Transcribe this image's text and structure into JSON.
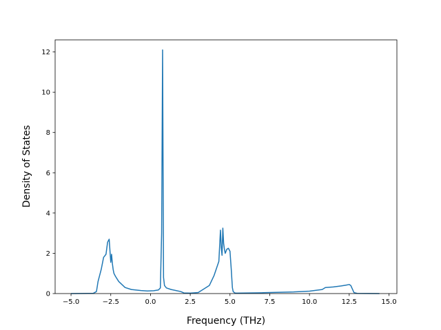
{
  "chart_data": {
    "type": "line",
    "xlabel": "Frequency (THz)",
    "ylabel": "Density of States",
    "xlim": [
      -6.0,
      15.5
    ],
    "ylim": [
      0,
      12.6
    ],
    "x_ticks": [
      -5.0,
      -2.5,
      0.0,
      2.5,
      5.0,
      7.5,
      10.0,
      12.5,
      15.0
    ],
    "x_tick_labels": [
      "−5.0",
      "−2.5",
      "0.0",
      "2.5",
      "5.0",
      "7.5",
      "10.0",
      "12.5",
      "15.0"
    ],
    "y_ticks": [
      0,
      2,
      4,
      6,
      8,
      10,
      12
    ],
    "y_tick_labels": [
      "0",
      "2",
      "4",
      "6",
      "8",
      "10",
      "12"
    ],
    "grid": false,
    "series": [
      {
        "color": "#1f77b4",
        "x": [
          -5.0,
          -3.6,
          -3.4,
          -3.3,
          -3.1,
          -2.95,
          -2.8,
          -2.7,
          -2.6,
          -2.5,
          -2.45,
          -2.4,
          -2.35,
          -2.3,
          -2.2,
          -2.0,
          -1.8,
          -1.6,
          -1.2,
          -0.6,
          -0.2,
          0.2,
          0.5,
          0.62,
          0.7,
          0.76,
          0.82,
          0.88,
          1.0,
          1.3,
          1.6,
          1.9,
          2.1,
          2.5,
          3.0,
          3.3,
          3.7,
          4.0,
          4.3,
          4.4,
          4.45,
          4.5,
          4.55,
          4.6,
          4.65,
          4.7,
          4.8,
          4.9,
          5.0,
          5.08,
          5.15,
          5.2,
          5.3,
          5.4,
          7.0,
          9.0,
          10.0,
          10.5,
          10.8,
          11.0,
          11.5,
          12.0,
          12.3,
          12.5,
          12.6,
          12.8,
          13.0,
          14.4
        ],
        "y": [
          0.0,
          0.01,
          0.1,
          0.6,
          1.2,
          1.8,
          1.95,
          2.55,
          2.7,
          1.55,
          1.95,
          1.5,
          1.2,
          1.0,
          0.85,
          0.6,
          0.45,
          0.3,
          0.2,
          0.15,
          0.13,
          0.14,
          0.18,
          0.28,
          3.0,
          12.1,
          0.8,
          0.4,
          0.28,
          0.2,
          0.15,
          0.1,
          0.03,
          0.02,
          0.05,
          0.2,
          0.4,
          0.9,
          1.6,
          3.15,
          2.3,
          1.9,
          3.25,
          2.5,
          2.2,
          2.0,
          2.2,
          2.25,
          2.1,
          1.2,
          0.3,
          0.1,
          0.03,
          0.02,
          0.04,
          0.08,
          0.12,
          0.17,
          0.2,
          0.3,
          0.33,
          0.38,
          0.42,
          0.45,
          0.4,
          0.05,
          0.01,
          0.0
        ]
      }
    ]
  }
}
